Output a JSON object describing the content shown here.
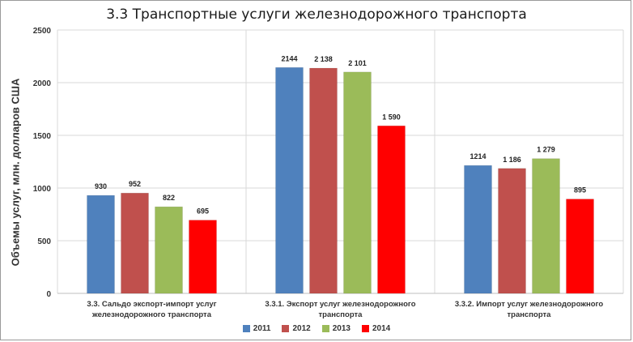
{
  "chart_data": {
    "type": "bar",
    "title": "3.3 Транспортные услуги железнодорожного транспорта",
    "ylabel": "Объемы услуг, млн. долларов США",
    "xlabel": "",
    "ylim": [
      0,
      2500
    ],
    "yticks": [
      "0",
      "500",
      "1000",
      "1500",
      "2000",
      "2500"
    ],
    "grid": true,
    "legend_position": "bottom",
    "categories": [
      [
        "3.3. Сальдо экспорт-импорт услуг",
        "железнодорожного транспорта"
      ],
      [
        "3.3.1. Экспорт услуг железнодорожного",
        "транспорта"
      ],
      [
        "3.3.2. Импорт услуг железнодорожного",
        "транспорта"
      ]
    ],
    "series": [
      {
        "name": "2011",
        "color": "#4f81bd",
        "values": [
          930,
          2144,
          1214
        ],
        "labels": [
          "930",
          "2144",
          "1214"
        ]
      },
      {
        "name": "2012",
        "color": "#c0504d",
        "values": [
          952,
          2138,
          1186
        ],
        "labels": [
          "952",
          "2 138",
          "1 186"
        ]
      },
      {
        "name": "2013",
        "color": "#9bbb59",
        "values": [
          822,
          2101,
          1279
        ],
        "labels": [
          "822",
          "2 101",
          "1 279"
        ]
      },
      {
        "name": "2014",
        "color": "#ff0000",
        "values": [
          695,
          1590,
          895
        ],
        "labels": [
          "695",
          "1 590",
          "895"
        ]
      }
    ]
  }
}
